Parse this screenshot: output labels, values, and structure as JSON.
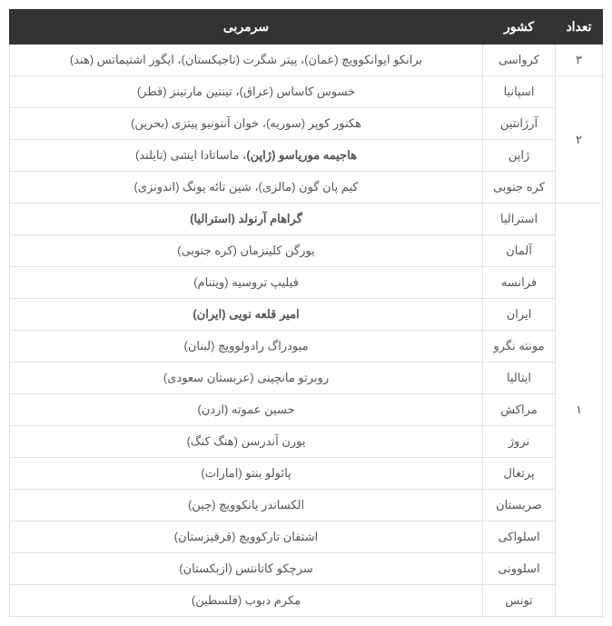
{
  "headers": {
    "count": "تعداد",
    "country": "کشور",
    "coach": "سرمربی"
  },
  "groups": [
    {
      "count": "۳",
      "rows": [
        {
          "country": "کرواسی",
          "coach": "برانکو ایوانکوویچ (عمان)، پیتر شگرت (تاجیکستان)، ایگور اشتیماتس (هند)",
          "bold": false
        }
      ]
    },
    {
      "count": "۲",
      "rows": [
        {
          "country": "اسپانیا",
          "coach": "خسوس کاساس (عراق)، تینتین مارتینز (قطر)",
          "bold": false
        },
        {
          "country": "آرژانتین",
          "coach": "هکتور کوپر (سوریه)، خوان آنتونیو پیتزی (بحرین)",
          "bold": false
        },
        {
          "country": "ژاپن",
          "coach": "هاجیمه موریاسو (ژاپن)، ماساتادا ایشی (تایلند)",
          "bold": true,
          "boldPart": "هاجیمه موریاسو (ژاپن)",
          "normalPart": "، ماساتادا ایشی (تایلند)"
        },
        {
          "country": "کره جنوبی",
          "coach": "کیم پان گون (مالزی)، شین تائه یونگ (اندونزی)",
          "bold": false
        }
      ]
    },
    {
      "count": "۱",
      "rows": [
        {
          "country": "استرالیا",
          "coach": "گراهام آرنولد (استرالیا)",
          "bold": true
        },
        {
          "country": "آلمان",
          "coach": "یورگن کلینزمان (کره جنوبی)",
          "bold": false
        },
        {
          "country": "فرانسه",
          "coach": "فیلیپ تروسیه (ویتنام)",
          "bold": false
        },
        {
          "country": "ایران",
          "coach": "امیر قلعه نویی (ایران)",
          "bold": true
        },
        {
          "country": "مونته نگرو",
          "coach": "میودراگ رادولوویچ (لبنان)",
          "bold": false
        },
        {
          "country": "ایتالیا",
          "coach": "روبرتو مانچینی (عربستان سعودی)",
          "bold": false
        },
        {
          "country": "مراکش",
          "coach": "حسین عموته (اردن)",
          "bold": false
        },
        {
          "country": "نروژ",
          "coach": "یورن آندرسن (هنگ کنگ)",
          "bold": false
        },
        {
          "country": "پرتغال",
          "coach": "پائولو بنتو (امارات)",
          "bold": false
        },
        {
          "country": "صربستان",
          "coach": "الکساندر یانکوویچ (چین)",
          "bold": false
        },
        {
          "country": "اسلواکی",
          "coach": "اشتفان تارکوویچ (قرقیزستان)",
          "bold": false
        },
        {
          "country": "اسلوونی",
          "coach": "سرچکو کاتانتس (ازبکستان)",
          "bold": false
        },
        {
          "country": "تونس",
          "coach": "مکرم دبوب (فلسطین)",
          "bold": false
        }
      ]
    }
  ]
}
